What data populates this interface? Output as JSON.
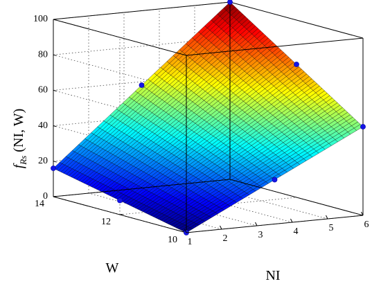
{
  "chart_data": {
    "type": "surface",
    "xlabel": "NI",
    "ylabel": "W",
    "zlabel_main": "f",
    "zlabel_sub": "Rs",
    "zlabel_args": " (NI, W)",
    "x_ticks": [
      "1",
      "2",
      "3",
      "4",
      "5",
      "6"
    ],
    "y_ticks": [
      "10",
      "12",
      "14"
    ],
    "z_ticks": [
      "0",
      "20",
      "40",
      "60",
      "80",
      "100"
    ],
    "xlim": [
      1,
      6
    ],
    "ylim": [
      10,
      14
    ],
    "zlim": [
      0,
      100
    ],
    "grid": true,
    "colormap": "jet",
    "surface_corners": [
      {
        "x": 1,
        "y": 10,
        "z": 0
      },
      {
        "x": 6,
        "y": 10,
        "z": 50
      },
      {
        "x": 1,
        "y": 14,
        "z": 16
      },
      {
        "x": 6,
        "y": 14,
        "z": 100
      }
    ],
    "points": [
      {
        "x": 1,
        "y": 14,
        "z": 16
      },
      {
        "x": 1,
        "y": 12,
        "z": 8
      },
      {
        "x": 1,
        "y": 10,
        "z": 0
      },
      {
        "x": 6,
        "y": 14,
        "z": 100
      },
      {
        "x": 6,
        "y": 12,
        "z": 75
      },
      {
        "x": 6,
        "y": 10,
        "z": 50
      },
      {
        "x": 3.5,
        "y": 14,
        "z": 58
      },
      {
        "x": 3.5,
        "y": 10,
        "z": 25
      }
    ]
  }
}
